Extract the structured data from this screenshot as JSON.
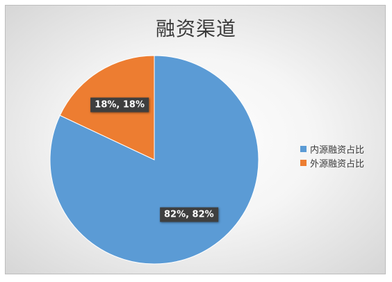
{
  "chart_data": {
    "type": "pie",
    "title": "融资渠道",
    "categories": [
      "内源融资占比",
      "外源融资占比"
    ],
    "values": [
      82,
      18
    ],
    "data_labels": [
      "82%, 82%",
      "18%, 18%"
    ],
    "colors": [
      "#5b9bd5",
      "#ed7d31"
    ],
    "start_angle_deg": 0,
    "direction": "clockwise",
    "legend_position": "right"
  }
}
